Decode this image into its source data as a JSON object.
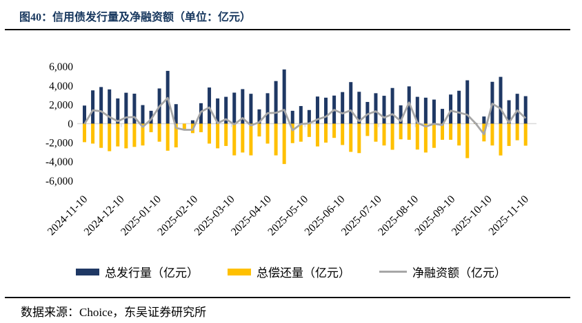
{
  "title": "图40：信用债发行量及净融资额（单位：亿元）",
  "source_note": "数据来源：Choice，东吴证券研究所",
  "colors": {
    "title_text": "#17375E",
    "issuance_bar": "#1F3864",
    "repayment_bar": "#FFC000",
    "net_line": "#A6A6A6",
    "axis_line": "#D9D9D9",
    "divider": "#0A0A0A"
  },
  "legend": {
    "items": [
      {
        "label": "总发行量（亿元）",
        "type": "bar",
        "color": "#1F3864"
      },
      {
        "label": "总偿还量（亿元）",
        "type": "bar",
        "color": "#FFC000"
      },
      {
        "label": "净融资额（亿元）",
        "type": "line",
        "color": "#A6A6A6"
      }
    ]
  },
  "chart_data": {
    "type": "bar",
    "title": "信用债发行量及净融资额（单位：亿元）",
    "xlabel": "",
    "ylabel": "",
    "ylim": [
      -6000,
      6000
    ],
    "grid": false,
    "legend_position": "bottom",
    "axis_color": "#D9D9D9",
    "y_ticks": [
      {
        "label": "6,000",
        "value": 6000
      },
      {
        "label": "4,000",
        "value": 4000
      },
      {
        "label": "2,000",
        "value": 2000
      },
      {
        "label": "0",
        "value": 0
      },
      {
        "label": "-2,000",
        "value": -2000
      },
      {
        "label": "-4,000",
        "value": -4000
      },
      {
        "label": "-6,000",
        "value": -6000
      }
    ],
    "x_tick_labels": [
      "2024-11-10",
      "2024-12-10",
      "2025-01-10",
      "2025-02-10",
      "2025-03-10",
      "2025-04-10",
      "2025-05-10",
      "2025-06-10",
      "2025-07-10",
      "2025-08-10",
      "2025-09-10",
      "2025-10-10",
      "2025-11-10"
    ],
    "series": [
      {
        "name": "总发行量（亿元）",
        "type": "bar",
        "color": "#1F3864",
        "values": [
          1900,
          3500,
          3850,
          3600,
          2650,
          3250,
          3150,
          1950,
          1350,
          3700,
          5550,
          2050,
          0,
          350,
          2150,
          3800,
          2650,
          2820,
          3260,
          3630,
          3140,
          1500,
          3200,
          4480,
          5700,
          1350,
          1850,
          1430,
          2850,
          2730,
          2950,
          3320,
          4370,
          3350,
          2280,
          3200,
          2930,
          3750,
          1920,
          3920,
          2820,
          2730,
          2530,
          1550,
          3060,
          3460,
          4560,
          50,
          750,
          4400,
          4920,
          2460,
          3140,
          2890
        ]
      },
      {
        "name": "总偿还量（亿元）",
        "type": "bar",
        "color": "#FFC000",
        "values": [
          -1950,
          -2100,
          -2550,
          -2900,
          -2400,
          -2600,
          -2450,
          -2300,
          -900,
          -1900,
          -2850,
          -2500,
          -650,
          -1000,
          -900,
          -2100,
          -2600,
          -2350,
          -3340,
          -3040,
          -3340,
          -1350,
          -2100,
          -3340,
          -4250,
          -2050,
          -1900,
          -1400,
          -2400,
          -2000,
          -1500,
          -2250,
          -2970,
          -3100,
          -1300,
          -1900,
          -2300,
          -2750,
          -1650,
          -1700,
          -2730,
          -3040,
          -2550,
          -1700,
          -1700,
          -2300,
          -3630,
          -30,
          -1870,
          -2300,
          -3350,
          -2350,
          -1750,
          -2320
        ]
      },
      {
        "name": "净融资额（亿元）",
        "type": "line",
        "color": "#A6A6A6",
        "values": [
          -50,
          1400,
          1300,
          700,
          250,
          650,
          700,
          -350,
          450,
          1800,
          2700,
          -450,
          -650,
          -650,
          1250,
          1700,
          50,
          470,
          -80,
          590,
          -200,
          150,
          1100,
          1140,
          1450,
          -700,
          -50,
          30,
          450,
          730,
          1450,
          1070,
          1400,
          250,
          980,
          1300,
          630,
          1000,
          270,
          2220,
          90,
          -310,
          -20,
          -150,
          1360,
          1160,
          930,
          20,
          -1120,
          2100,
          1570,
          110,
          1390,
          570
        ]
      }
    ]
  }
}
